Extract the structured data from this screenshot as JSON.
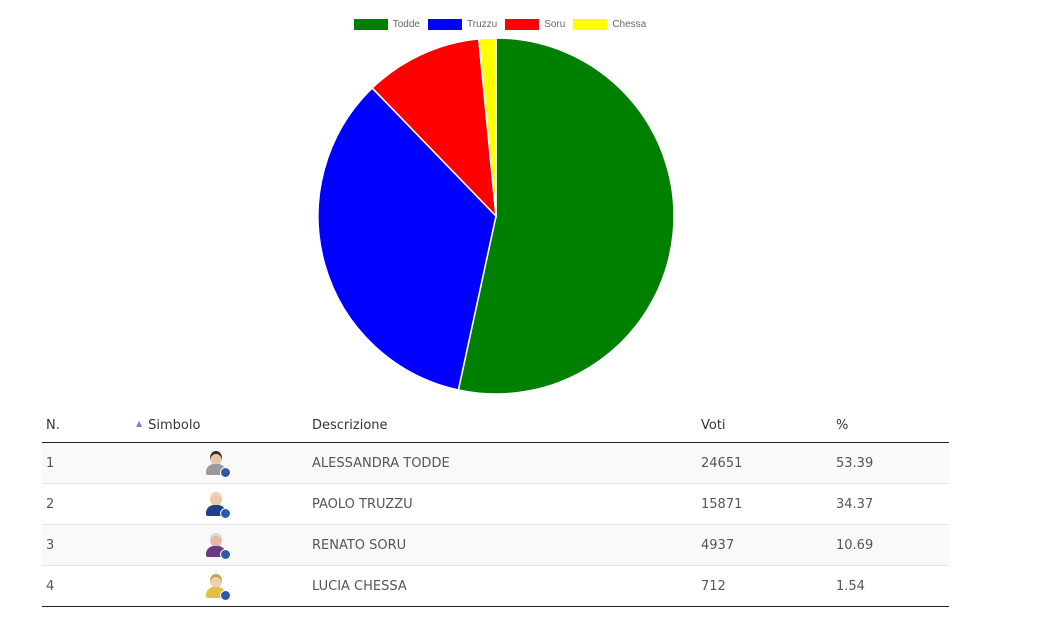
{
  "chart_data": {
    "type": "pie",
    "legend_position": "top",
    "slices": [
      {
        "label": "Todde",
        "value": 24651,
        "color": "#008000"
      },
      {
        "label": "Truzzu",
        "value": 15871,
        "color": "#0000ff"
      },
      {
        "label": "Soru",
        "value": 4937,
        "color": "#ff0000"
      },
      {
        "label": "Chessa",
        "value": 712,
        "color": "#ffff00"
      }
    ]
  },
  "table": {
    "headers": {
      "n": "N.",
      "simbolo": "Simbolo",
      "descrizione": "Descrizione",
      "voti": "Voti",
      "pct": "%"
    },
    "sort_icon": "sort-up-triangle",
    "rows": [
      {
        "n": "1",
        "descrizione": "ALESSANDRA TODDE",
        "voti": "24651",
        "pct": "53.39",
        "avatar": {
          "hair": "#3a2a22",
          "skin": "#e8c4a8",
          "shirt": "#9a9a9a"
        }
      },
      {
        "n": "2",
        "descrizione": "PAOLO TRUZZU",
        "voti": "15871",
        "pct": "34.37",
        "avatar": {
          "hair": "#f0d2b8",
          "skin": "#f0c8a8",
          "shirt": "#1f3f8a"
        }
      },
      {
        "n": "3",
        "descrizione": "RENATO SORU",
        "voti": "4937",
        "pct": "10.69",
        "avatar": {
          "hair": "#d9d9d9",
          "skin": "#e6b9a0",
          "shirt": "#6a3a86"
        }
      },
      {
        "n": "4",
        "descrizione": "LUCIA CHESSA",
        "voti": "712",
        "pct": "1.54",
        "avatar": {
          "hair": "#c9a34a",
          "skin": "#efcdb0",
          "shirt": "#e0c040"
        }
      }
    ]
  }
}
